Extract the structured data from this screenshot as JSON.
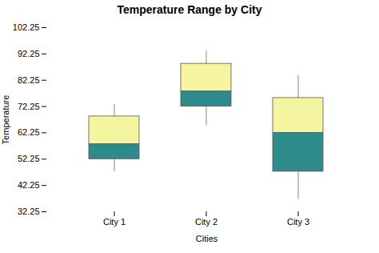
{
  "chart_data": {
    "type": "box",
    "title": "Temperature Range by City",
    "xlabel": "Cities",
    "ylabel": "Temperature",
    "categories": [
      "City 1",
      "City 2",
      "City 3"
    ],
    "values": [
      {
        "whislo": 47.5,
        "q1": 52.25,
        "med": 58.0,
        "q3": 68.5,
        "whishi": 73.0
      },
      {
        "whislo": 65.0,
        "q1": 72.25,
        "med": 78.0,
        "q3": 88.5,
        "whishi": 93.5
      },
      {
        "whislo": 37.0,
        "q1": 47.5,
        "med": 62.25,
        "q3": 75.5,
        "whishi": 84.0
      }
    ],
    "colors": [
      "#2e8b8b",
      "#f5f5a0"
    ],
    "ylim": [
      32.25,
      102.25
    ],
    "yticks": [
      32.25,
      42.25,
      52.25,
      62.25,
      72.25,
      82.25,
      92.25,
      102.25
    ],
    "grid": false
  }
}
